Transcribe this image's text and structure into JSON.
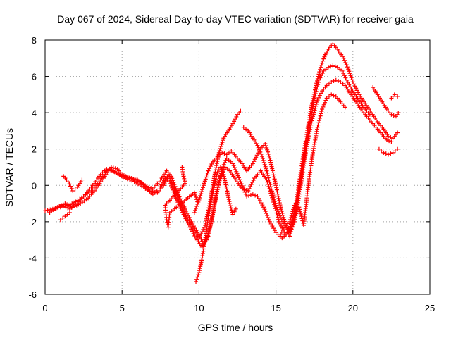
{
  "chart_data": {
    "type": "scatter",
    "title": "Day 067 of 2024, Sidereal Day-to-day VTEC variation (SDTVAR) for receiver gaia",
    "xlabel": "GPS time / hours",
    "ylabel": "SDTVAR / TECUs",
    "xlim": [
      0,
      25
    ],
    "ylim": [
      -6,
      8
    ],
    "xticks": [
      0,
      5,
      10,
      15,
      20,
      25
    ],
    "yticks": [
      -6,
      -4,
      -2,
      0,
      2,
      4,
      6,
      8
    ],
    "grid": true,
    "marker": "+",
    "color": "#ff0000",
    "series": [
      {
        "name": "track-1",
        "points": [
          [
            0,
            -1.4
          ],
          [
            0.5,
            -1.3
          ],
          [
            1,
            -1.2
          ],
          [
            1.5,
            -1.1
          ],
          [
            2,
            -0.9
          ],
          [
            2.5,
            -0.6
          ],
          [
            3,
            -0.3
          ],
          [
            3.5,
            0.2
          ],
          [
            4,
            0.8
          ],
          [
            4.3,
            1.0
          ],
          [
            4.7,
            0.9
          ],
          [
            5,
            0.6
          ],
          [
            5.5,
            0.4
          ],
          [
            6,
            0.3
          ],
          [
            6.5,
            0.0
          ],
          [
            7,
            -0.2
          ],
          [
            7.5,
            0.3
          ],
          [
            7.9,
            0.8
          ],
          [
            8.2,
            0.5
          ],
          [
            8.6,
            -0.4
          ],
          [
            9.1,
            -1.3
          ],
          [
            9.5,
            -2.0
          ],
          [
            9.9,
            -2.6
          ],
          [
            10.3,
            -3.2
          ],
          [
            10.6,
            -2.8
          ],
          [
            10.9,
            -1.6
          ],
          [
            11.2,
            -0.2
          ],
          [
            11.5,
            0.9
          ],
          [
            11.8,
            1.5
          ],
          [
            12.2,
            1.2
          ],
          [
            12.7,
            0.2
          ],
          [
            13.1,
            -0.6
          ],
          [
            13.5,
            -0.5
          ],
          [
            13.8,
            -0.6
          ],
          [
            14.2,
            -1.2
          ],
          [
            14.6,
            -2.0
          ],
          [
            15.0,
            -2.6
          ],
          [
            15.4,
            -2.9
          ],
          [
            15.8,
            -2.6
          ],
          [
            16.1,
            -1.8
          ],
          [
            16.4,
            -0.5
          ],
          [
            16.7,
            1.2
          ],
          [
            17.0,
            2.8
          ],
          [
            17.3,
            4.3
          ],
          [
            17.6,
            5.5
          ],
          [
            17.9,
            6.5
          ],
          [
            18.2,
            7.2
          ],
          [
            18.5,
            7.6
          ],
          [
            18.7,
            7.8
          ],
          [
            19.0,
            7.5
          ],
          [
            19.4,
            7.0
          ],
          [
            19.7,
            6.4
          ],
          [
            20.0,
            5.7
          ],
          [
            20.4,
            5.0
          ],
          [
            20.8,
            4.5
          ],
          [
            21.2,
            4.0
          ],
          [
            21.6,
            3.5
          ],
          [
            22.0,
            3.1
          ],
          [
            22.3,
            2.7
          ],
          [
            22.6,
            2.6
          ],
          [
            22.9,
            2.9
          ]
        ]
      },
      {
        "name": "track-2",
        "points": [
          [
            0.3,
            -1.5
          ],
          [
            0.8,
            -1.2
          ],
          [
            1.3,
            -1.0
          ],
          [
            1.8,
            -1.2
          ],
          [
            2.3,
            -1.0
          ],
          [
            2.8,
            -0.7
          ],
          [
            3.3,
            -0.2
          ],
          [
            3.8,
            0.4
          ],
          [
            4.2,
            0.9
          ],
          [
            4.6,
            0.7
          ],
          [
            5.2,
            0.4
          ],
          [
            5.8,
            0.2
          ],
          [
            6.4,
            -0.1
          ],
          [
            7.0,
            -0.5
          ],
          [
            7.4,
            -0.2
          ],
          [
            7.8,
            0.4
          ],
          [
            8.1,
            0.2
          ],
          [
            8.5,
            -0.7
          ],
          [
            9.0,
            -1.6
          ],
          [
            9.4,
            -2.3
          ],
          [
            9.8,
            -2.9
          ],
          [
            10.2,
            -3.4
          ],
          [
            10.5,
            -3.0
          ],
          [
            10.8,
            -2.0
          ],
          [
            11.1,
            -0.6
          ],
          [
            11.4,
            0.5
          ],
          [
            11.7,
            1.0
          ],
          [
            12.0,
            0.8
          ],
          [
            12.4,
            0.3
          ],
          [
            12.8,
            -0.2
          ],
          [
            13.2,
            -0.3
          ],
          [
            13.6,
            0.4
          ],
          [
            14.0,
            0.8
          ],
          [
            14.4,
            0.3
          ],
          [
            14.8,
            -0.8
          ],
          [
            15.2,
            -2.0
          ],
          [
            15.6,
            -2.7
          ],
          [
            16.0,
            -2.4
          ],
          [
            16.3,
            -1.3
          ],
          [
            16.6,
            0.3
          ],
          [
            16.9,
            1.9
          ],
          [
            17.2,
            3.4
          ],
          [
            17.5,
            4.8
          ],
          [
            17.8,
            5.8
          ],
          [
            18.1,
            6.3
          ],
          [
            18.4,
            6.5
          ],
          [
            18.7,
            6.6
          ],
          [
            19.0,
            6.5
          ],
          [
            19.3,
            6.3
          ],
          [
            19.6,
            5.8
          ],
          [
            19.9,
            5.3
          ],
          [
            20.3,
            4.8
          ],
          [
            20.7,
            4.3
          ],
          [
            21.1,
            3.9
          ]
        ]
      },
      {
        "name": "track-3",
        "points": [
          [
            0.6,
            -1.3
          ],
          [
            1.1,
            -1.1
          ],
          [
            1.6,
            -1.3
          ],
          [
            2.1,
            -1.0
          ],
          [
            2.6,
            -0.5
          ],
          [
            3.1,
            0.0
          ],
          [
            3.6,
            0.6
          ],
          [
            4.0,
            0.9
          ],
          [
            4.4,
            0.8
          ],
          [
            5.0,
            0.5
          ],
          [
            5.6,
            0.4
          ],
          [
            6.2,
            0.2
          ],
          [
            6.8,
            -0.3
          ],
          [
            7.3,
            -0.4
          ],
          [
            7.7,
            0.0
          ],
          [
            8.0,
            0.6
          ],
          [
            8.4,
            -0.2
          ],
          [
            8.8,
            -1.0
          ],
          [
            9.2,
            -1.8
          ],
          [
            9.6,
            -2.4
          ],
          [
            10.0,
            -2.9
          ],
          [
            10.4,
            -2.2
          ],
          [
            10.7,
            -1.0
          ],
          [
            11.0,
            0.5
          ],
          [
            11.3,
            1.8
          ],
          [
            11.6,
            2.6
          ],
          [
            11.9,
            3.0
          ],
          [
            12.2,
            3.4
          ],
          [
            12.5,
            3.9
          ],
          [
            12.7,
            4.1
          ]
        ]
      },
      {
        "name": "track-4",
        "points": [
          [
            9.7,
            -1.5
          ],
          [
            10.0,
            -0.8
          ],
          [
            10.3,
            0.0
          ],
          [
            10.6,
            0.8
          ],
          [
            10.9,
            1.3
          ],
          [
            11.2,
            1.6
          ],
          [
            11.5,
            1.8
          ],
          [
            11.8,
            1.7
          ],
          [
            12.1,
            1.9
          ],
          [
            12.4,
            1.6
          ],
          [
            12.8,
            1.2
          ],
          [
            13.1,
            0.8
          ],
          [
            13.5,
            1.2
          ],
          [
            13.9,
            1.9
          ],
          [
            14.3,
            2.3
          ],
          [
            14.6,
            1.5
          ],
          [
            15.0,
            0.0
          ],
          [
            15.3,
            -1.2
          ],
          [
            15.6,
            -2.1
          ],
          [
            15.9,
            -2.5
          ],
          [
            16.2,
            -2.0
          ],
          [
            16.5,
            -0.6
          ],
          [
            16.8,
            1.1
          ],
          [
            17.1,
            2.6
          ],
          [
            17.4,
            3.8
          ],
          [
            17.7,
            4.7
          ],
          [
            18.0,
            5.2
          ],
          [
            18.3,
            5.5
          ],
          [
            18.6,
            5.7
          ],
          [
            18.9,
            5.8
          ],
          [
            19.2,
            5.7
          ],
          [
            19.5,
            5.5
          ],
          [
            19.8,
            5.1
          ],
          [
            20.2,
            4.6
          ],
          [
            20.6,
            4.1
          ],
          [
            21.0,
            3.7
          ],
          [
            21.4,
            3.3
          ],
          [
            21.8,
            2.9
          ],
          [
            22.2,
            2.5
          ],
          [
            22.5,
            2.4
          ]
        ]
      },
      {
        "name": "track-5",
        "points": [
          [
            9.8,
            -5.3
          ],
          [
            10.0,
            -4.8
          ],
          [
            10.2,
            -4.0
          ],
          [
            10.4,
            -3.0
          ],
          [
            10.6,
            -1.8
          ],
          [
            10.8,
            -0.8
          ],
          [
            11.0,
            0.0
          ],
          [
            11.2,
            0.7
          ],
          [
            11.4,
            1.0
          ],
          [
            11.6,
            0.6
          ],
          [
            11.8,
            -0.2
          ],
          [
            12.0,
            -1.0
          ],
          [
            12.2,
            -1.6
          ],
          [
            12.4,
            -1.3
          ]
        ]
      },
      {
        "name": "track-6",
        "points": [
          [
            12.9,
            3.2
          ],
          [
            13.2,
            3.0
          ],
          [
            13.5,
            2.6
          ],
          [
            13.8,
            2.2
          ],
          [
            14.1,
            1.6
          ],
          [
            14.4,
            0.8
          ],
          [
            14.7,
            -0.2
          ],
          [
            15.0,
            -1.1
          ],
          [
            15.3,
            -1.8
          ],
          [
            15.6,
            -2.2
          ],
          [
            15.9,
            -2.0
          ],
          [
            16.2,
            -1.1
          ]
        ]
      },
      {
        "name": "track-7",
        "points": [
          [
            15.3,
            -2.7
          ],
          [
            15.6,
            -2.2
          ],
          [
            15.9,
            -2.8
          ],
          [
            16.2,
            -1.8
          ],
          [
            16.5,
            -1.2
          ],
          [
            16.8,
            -2.2
          ],
          [
            17.1,
            0.0
          ],
          [
            17.4,
            1.8
          ],
          [
            17.7,
            3.2
          ],
          [
            18.0,
            4.2
          ],
          [
            18.3,
            4.8
          ],
          [
            18.6,
            5.0
          ],
          [
            18.9,
            4.9
          ],
          [
            19.2,
            4.6
          ],
          [
            19.5,
            4.3
          ]
        ]
      },
      {
        "name": "track-8",
        "points": [
          [
            21.3,
            5.4
          ],
          [
            21.6,
            5.0
          ],
          [
            21.9,
            4.6
          ],
          [
            22.2,
            4.2
          ],
          [
            22.5,
            3.9
          ],
          [
            22.8,
            3.8
          ],
          [
            22.95,
            4.0
          ]
        ]
      },
      {
        "name": "track-9",
        "points": [
          [
            21.7,
            2.0
          ],
          [
            22.0,
            1.8
          ],
          [
            22.3,
            1.7
          ],
          [
            22.6,
            1.8
          ],
          [
            22.9,
            2.0
          ]
        ]
      },
      {
        "name": "track-10",
        "points": [
          [
            22.5,
            4.8
          ],
          [
            22.7,
            5.0
          ],
          [
            22.9,
            4.9
          ]
        ]
      },
      {
        "name": "track-11",
        "points": [
          [
            1.2,
            0.5
          ],
          [
            1.5,
            0.2
          ],
          [
            1.8,
            -0.3
          ],
          [
            2.1,
            -0.1
          ],
          [
            2.4,
            0.3
          ],
          [
            1.0,
            -1.9
          ],
          [
            1.3,
            -1.7
          ],
          [
            1.6,
            -1.5
          ]
        ]
      },
      {
        "name": "track-12",
        "points": [
          [
            8.9,
            1.0
          ],
          [
            9.0,
            0.5
          ],
          [
            9.1,
            0.1
          ],
          [
            7.8,
            -1.1
          ],
          [
            7.9,
            -1.9
          ],
          [
            8.0,
            -2.3
          ],
          [
            8.1,
            -1.5
          ],
          [
            9.7,
            -0.4
          ],
          [
            9.9,
            -0.9
          ]
        ]
      }
    ]
  }
}
